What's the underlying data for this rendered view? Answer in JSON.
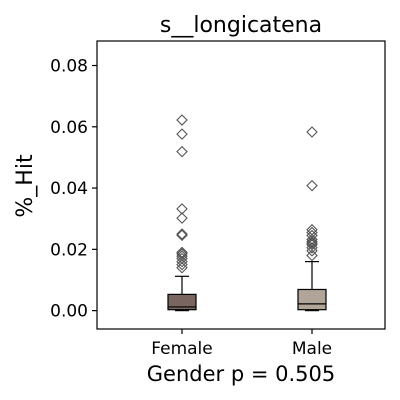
{
  "chart_data": {
    "type": "box",
    "title": "s__longicatena",
    "xlabel": "Gender p = 0.505",
    "ylabel": "%_Hit",
    "ylim": [
      -0.006,
      0.088
    ],
    "yticks": [
      0.0,
      0.02,
      0.04,
      0.06,
      0.08
    ],
    "ytick_labels": [
      "0.00",
      "0.02",
      "0.04",
      "0.06",
      "0.08"
    ],
    "categories": [
      "Female",
      "Male"
    ],
    "grid": false,
    "series": [
      {
        "category": "Female",
        "color": "#7a6661",
        "q1": 0.0003,
        "median": 0.0012,
        "q3": 0.0053,
        "whisker_low": 0.0,
        "whisker_high": 0.0112,
        "outliers": [
          0.0622,
          0.0576,
          0.0519,
          0.0332,
          0.0302,
          0.025,
          0.0246,
          0.019,
          0.0185,
          0.0178,
          0.017,
          0.016,
          0.015,
          0.014
        ]
      },
      {
        "category": "Male",
        "color": "#b1a498",
        "q1": 0.0003,
        "median": 0.0022,
        "q3": 0.0069,
        "whisker_low": 0.0,
        "whisker_high": 0.016,
        "outliers": [
          0.0583,
          0.0408,
          0.0264,
          0.0255,
          0.0245,
          0.0232,
          0.0225,
          0.022,
          0.0215,
          0.0205,
          0.0195,
          0.018
        ]
      }
    ]
  }
}
